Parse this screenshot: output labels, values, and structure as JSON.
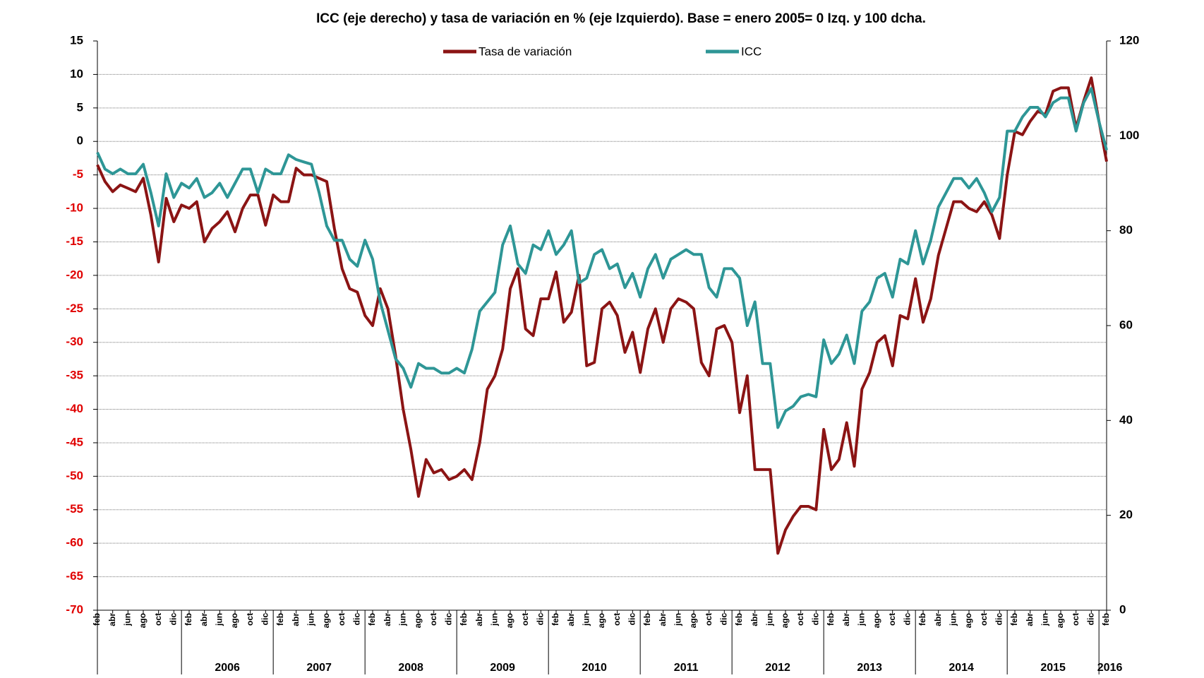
{
  "chart_data": {
    "type": "line",
    "title": "ICC (eje derecho) y tasa de variación en %  (eje Izquierdo). Base = enero 2005= 0 Izq. y 100 dcha.",
    "categories": [
      "feb",
      null,
      "abr",
      null,
      "jun",
      null,
      "ago",
      null,
      "oct",
      null,
      "dic",
      null,
      "feb",
      null,
      "abr",
      null,
      "jun",
      null,
      "ago",
      null,
      "oct",
      null,
      "dic",
      null,
      "feb",
      null,
      "abr",
      null,
      "jun",
      null,
      "ago",
      null,
      "oct",
      null,
      "dic",
      null,
      "feb",
      null,
      "abr",
      null,
      "jun",
      null,
      "ago",
      null,
      "oct",
      null,
      "dic",
      null,
      "feb",
      null,
      "abr",
      null,
      "jun",
      null,
      "ago",
      null,
      "oct",
      null,
      "dic",
      null,
      "feb",
      null,
      "abr",
      null,
      "jun",
      null,
      "ago",
      null,
      "oct",
      null,
      "dic",
      null,
      "feb",
      null,
      "abr",
      null,
      "jun",
      null,
      "ago",
      null,
      "oct",
      null,
      "dic",
      null,
      "feb",
      null,
      "abr",
      null,
      "jun",
      null,
      "ago",
      null,
      "oct",
      null,
      "dic",
      null,
      "feb",
      null,
      "abr",
      null,
      "jun",
      null,
      "ago",
      null,
      "oct",
      null,
      "dic",
      null,
      "feb",
      null,
      "abr",
      null,
      "jun",
      null,
      "ago",
      null,
      "oct",
      null,
      "dic",
      null,
      "feb",
      null,
      "abr",
      null,
      "jun",
      null,
      "ago",
      null,
      "oct",
      null,
      "dic",
      null,
      "feb"
    ],
    "years": [
      "2006",
      "2007",
      "2008",
      "2009",
      "2010",
      "2011",
      "2012",
      "2013",
      "2014",
      "2015",
      "2016"
    ],
    "series": [
      {
        "name": "Tasa de variación",
        "color": "#8b1414",
        "axis": "y",
        "values": [
          -3.5,
          -6,
          -7.5,
          -6.5,
          -7,
          -7.5,
          -5.5,
          -11,
          -18,
          -8.5,
          -12,
          -9.5,
          -10,
          -9,
          -15,
          -13,
          -12,
          -10.5,
          -13.5,
          -10,
          -8,
          -8,
          -12.5,
          -8,
          -9,
          -9,
          -4,
          -5,
          -5,
          -5.5,
          -6,
          -13,
          -19,
          -22,
          -22.5,
          -26,
          -27.5,
          -22,
          -25,
          -32,
          -40,
          -46,
          -53,
          -47.5,
          -49.5,
          -49,
          -50.5,
          -50,
          -49,
          -50.5,
          -45,
          -37,
          -35,
          -31,
          -22,
          -19,
          -28,
          -29,
          -23.5,
          -23.5,
          -19.5,
          -27,
          -25.5,
          -20,
          -33.5,
          -33,
          -25,
          -24,
          -26,
          -31.5,
          -28.5,
          -34.5,
          -28,
          -25,
          -30,
          -25,
          -23.5,
          -24,
          -25,
          -33,
          -35,
          -28,
          -27.5,
          -30,
          -40.5,
          -35,
          -49,
          -49,
          -49,
          -61.5,
          -58,
          -56,
          -54.5,
          -54.5,
          -55,
          -43,
          -49,
          -47.5,
          -42,
          -48.5,
          -37,
          -34.5,
          -30,
          -29,
          -33.5,
          -26,
          -26.5,
          -20.5,
          -27,
          -23.5,
          -17,
          -13,
          -9,
          -9,
          -10,
          -10.5,
          -9,
          -11,
          -14.5,
          -5,
          1.5,
          1,
          3,
          4.5,
          4,
          7.5,
          8,
          8,
          2,
          6,
          9.5,
          3,
          -3
        ]
      },
      {
        "name": "ICC",
        "color": "#2e9696",
        "axis": "y2",
        "values": [
          96.5,
          93,
          92,
          93,
          92,
          92,
          94,
          88,
          81,
          92,
          87,
          90,
          89,
          91,
          87,
          88,
          90,
          87,
          90,
          93,
          93,
          88,
          93,
          92,
          92,
          96,
          95,
          94.5,
          94,
          88,
          81,
          78,
          78,
          74,
          72.5,
          78,
          74,
          65,
          59,
          53,
          51,
          47,
          52,
          51,
          51,
          50,
          50,
          51,
          50,
          55,
          63,
          65,
          67,
          77,
          81,
          73,
          71,
          77,
          76,
          80,
          75,
          77,
          80,
          69,
          70,
          75,
          76,
          72,
          73,
          68,
          71,
          66,
          72,
          75,
          70,
          74,
          75,
          76,
          75,
          75,
          68,
          66,
          72,
          72,
          70,
          60,
          65,
          52,
          52,
          38.5,
          42,
          43,
          45,
          45.5,
          45,
          57,
          52,
          54,
          58,
          52,
          63,
          65,
          70,
          71,
          66,
          74,
          73,
          80,
          73,
          78,
          85,
          88,
          91,
          91,
          89,
          91,
          88,
          84,
          87,
          101,
          101,
          104,
          106,
          106,
          104,
          107,
          108,
          108,
          101,
          107,
          110,
          103,
          97
        ]
      }
    ],
    "ylim": [
      -70,
      15
    ],
    "yticks": [
      -70,
      -65,
      -60,
      -55,
      -50,
      -45,
      -40,
      -35,
      -30,
      -25,
      -20,
      -15,
      -10,
      -5,
      0,
      5,
      10,
      15
    ],
    "y2lim": [
      0,
      120
    ],
    "y2ticks": [
      0,
      20,
      40,
      60,
      80,
      100,
      120
    ],
    "negative_tick_color": "#e00000",
    "grid": true,
    "legend": "top"
  }
}
